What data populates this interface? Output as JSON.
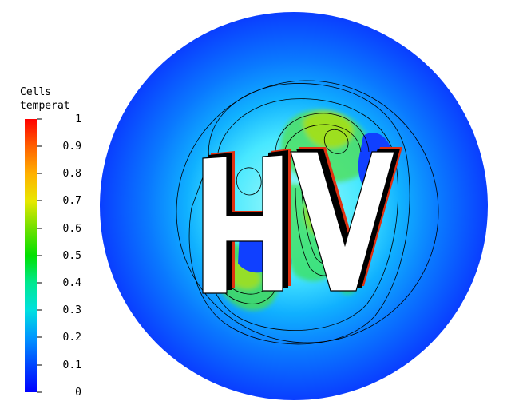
{
  "legend": {
    "title_line1": "Cells",
    "title_line2": "temperat",
    "ticks": [
      "1",
      "0.9",
      "0.8",
      "0.7",
      "0.6",
      "0.5",
      "0.4",
      "0.3",
      "0.2",
      "0.1",
      "0"
    ],
    "range": [
      0,
      1
    ]
  },
  "scene": {
    "letters": "HV"
  }
}
